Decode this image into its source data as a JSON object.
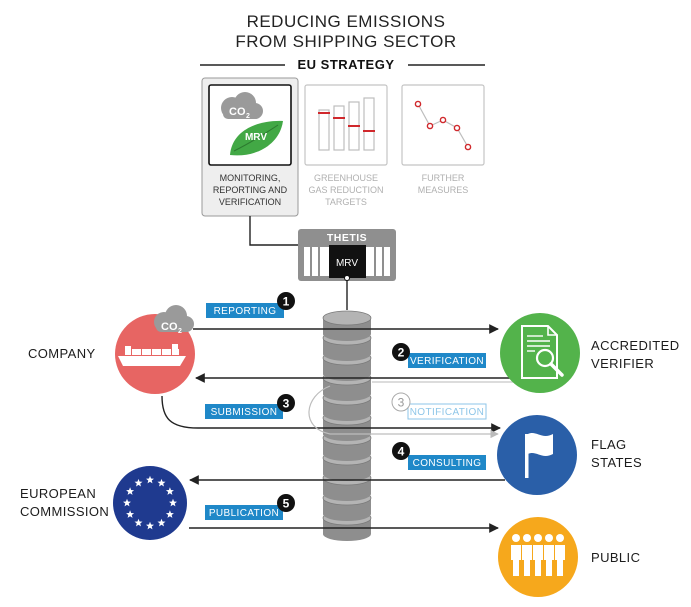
{
  "title": {
    "line1": "REDUCING EMISSIONS",
    "line2": "FROM SHIPPING SECTOR"
  },
  "strategy": {
    "heading": "EU STRATEGY",
    "panels": [
      {
        "lines": [
          "MONITORING,",
          "REPORTING AND",
          "VERIFICATION"
        ],
        "icon": "co2-mrv-leaf-icon",
        "active": true
      },
      {
        "lines": [
          "GREENHOUSE",
          "GAS REDUCTION",
          "TARGETS"
        ],
        "icon": "bar-targets-icon",
        "active": false
      },
      {
        "lines": [
          "FURTHER",
          "MEASURES"
        ],
        "icon": "line-trend-icon",
        "active": false
      }
    ],
    "co2_label": "CO",
    "co2_sub": "2",
    "mrv_label": "MRV"
  },
  "system": {
    "name": "THETIS",
    "mrv_label": "MRV",
    "database_icon": "database-stack-icon"
  },
  "actors": {
    "company": {
      "label": "COMPANY",
      "icon": "ship-icon",
      "color": "#e76563"
    },
    "verifier": {
      "lines": [
        "ACCREDITED",
        "VERIFIER"
      ],
      "icon": "document-search-icon",
      "color": "#53b34b"
    },
    "flag_states": {
      "lines": [
        "FLAG",
        "STATES"
      ],
      "icon": "flag-icon",
      "color": "#2a5fa8"
    },
    "commission": {
      "lines": [
        "EUROPEAN",
        "COMMISSION"
      ],
      "icon": "eu-stars-icon",
      "color": "#1f3a8f"
    },
    "public": {
      "label": "PUBLIC",
      "icon": "people-icon",
      "color": "#f6a81c"
    }
  },
  "steps": [
    {
      "number": "1",
      "label": "REPORTING"
    },
    {
      "number": "2",
      "label": "VERIFICATION"
    },
    {
      "number": "3",
      "label": "SUBMISSION"
    },
    {
      "number": "3",
      "label": "NOTIFICATION"
    },
    {
      "number": "4",
      "label": "CONSULTING"
    },
    {
      "number": "5",
      "label": "PUBLICATION"
    }
  ]
}
